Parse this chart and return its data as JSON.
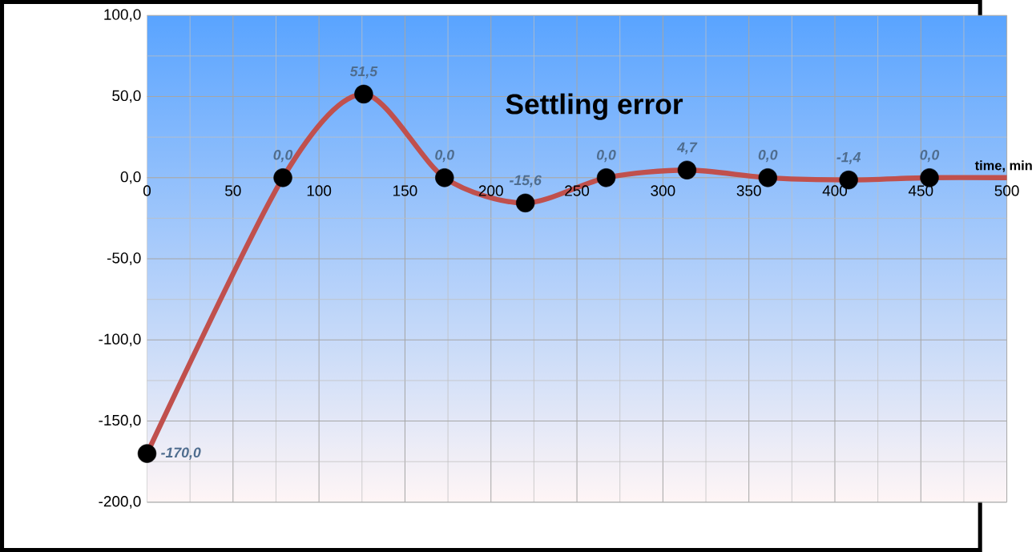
{
  "chart_data": {
    "type": "line",
    "title": "Settling error",
    "xlabel": "time, min",
    "x": [
      0,
      79,
      126,
      173,
      220,
      267,
      314,
      361,
      408,
      455,
      500
    ],
    "series": [
      {
        "color": "#c0504d",
        "values": [
          -170.0,
          0.0,
          51.5,
          0.0,
          -15.6,
          0.0,
          4.7,
          0.0,
          -1.4,
          0.0,
          0.0
        ],
        "value_labels": [
          "-170,0",
          "0,0",
          "51,5",
          "0,0",
          "-15,6",
          "0,0",
          "4,7",
          "0,0",
          "-1,4",
          "0,0",
          null
        ]
      }
    ],
    "xlim": [
      0,
      500
    ],
    "xticks": [
      0,
      50,
      100,
      150,
      200,
      250,
      300,
      350,
      400,
      450,
      500
    ],
    "ylim": [
      -200,
      100
    ],
    "yticks": [
      {
        "value": -200,
        "label": "-200,0"
      },
      {
        "value": -150,
        "label": "-150,0"
      },
      {
        "value": -100,
        "label": "-100,0"
      },
      {
        "value": -50,
        "label": "-50,0"
      },
      {
        "value": 0,
        "label": "0,0"
      },
      {
        "value": 50,
        "label": "50,0"
      },
      {
        "value": 100,
        "label": "100,0"
      }
    ],
    "grid": true,
    "marker": "circle",
    "line_style": "solid"
  }
}
